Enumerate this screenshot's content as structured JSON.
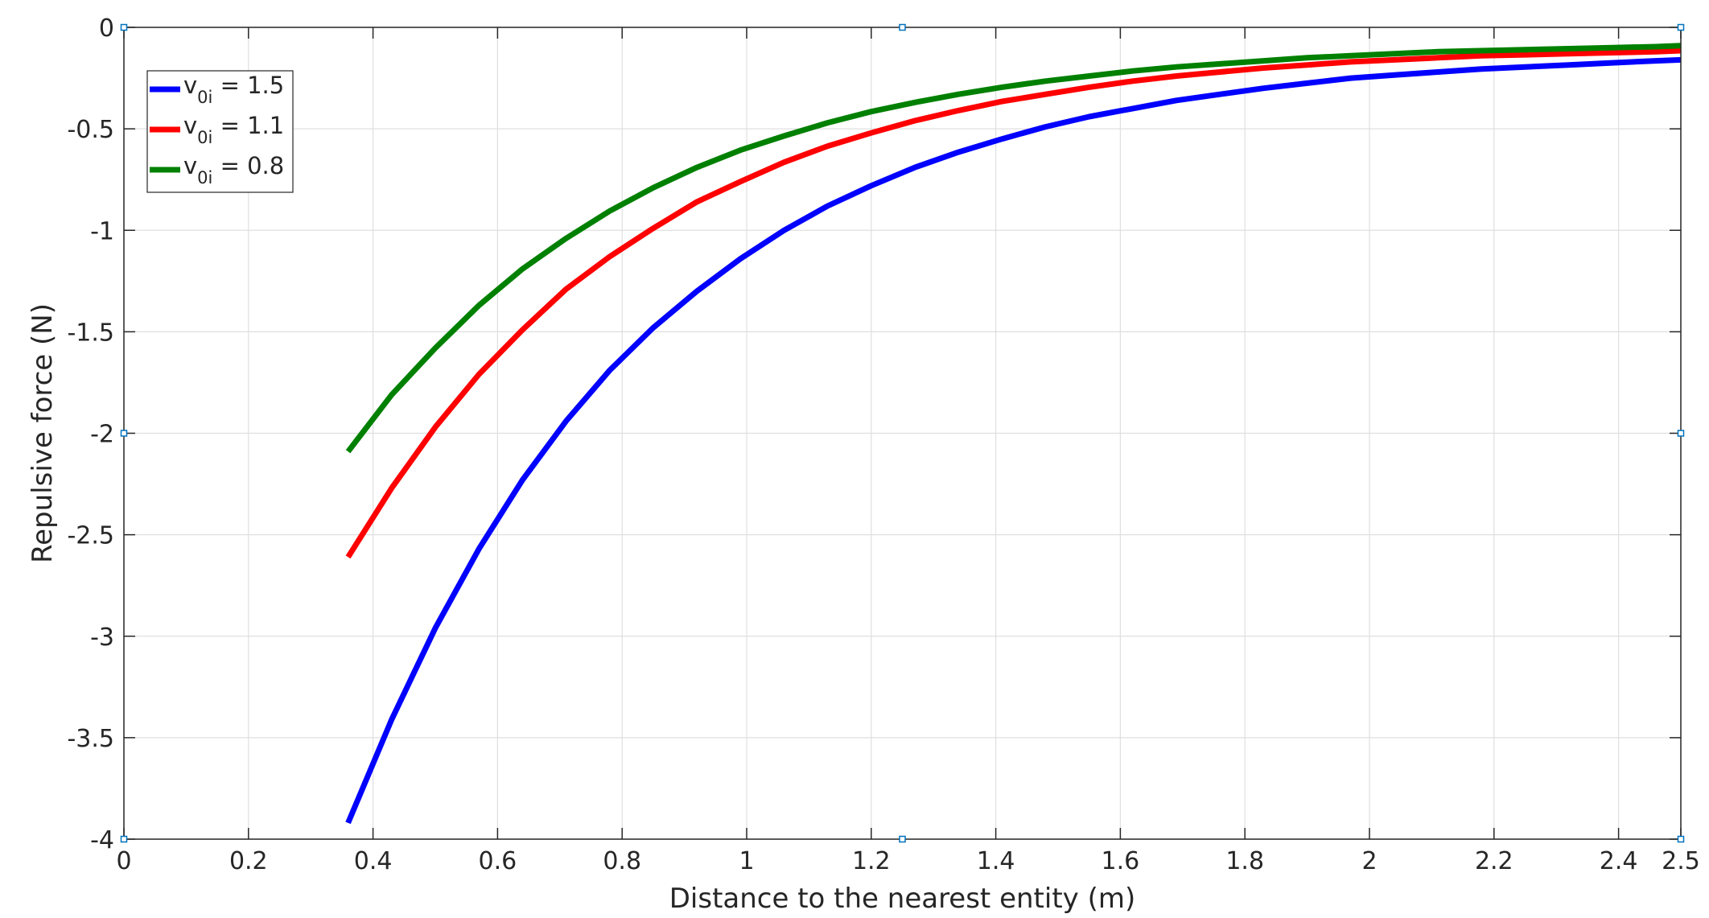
{
  "chart_data": {
    "type": "line",
    "title": "",
    "xlabel": "Distance to the nearest entity (m)",
    "ylabel": "Repulsive force (N)",
    "xlim": [
      0,
      2.5
    ],
    "ylim": [
      -4,
      0
    ],
    "xticks": [
      0,
      0.2,
      0.4,
      0.6,
      0.8,
      1,
      1.2,
      1.4,
      1.6,
      1.8,
      2,
      2.2,
      2.4,
      2.5
    ],
    "xtick_labels": [
      "0",
      "0.2",
      "0.4",
      "0.6",
      "0.8",
      "1",
      "1.2",
      "1.4",
      "1.6",
      "1.8",
      "2",
      "2.2",
      "2.4",
      "2.5"
    ],
    "yticks": [
      0,
      -0.5,
      -1,
      -1.5,
      -2,
      -2.5,
      -3,
      -3.5,
      -4
    ],
    "ytick_labels": [
      "0",
      "-0.5",
      "-1",
      "-1.5",
      "-2",
      "-2.5",
      "-3",
      "-3.5",
      "-4"
    ],
    "grid": true,
    "legend_location": "top-left",
    "x": [
      0.36,
      0.43,
      0.5,
      0.57,
      0.64,
      0.71,
      0.78,
      0.85,
      0.92,
      0.99,
      1.06,
      1.13,
      1.2,
      1.27,
      1.34,
      1.41,
      1.48,
      1.55,
      1.62,
      1.69,
      1.76,
      1.83,
      1.9,
      1.97,
      2.04,
      2.11,
      2.18,
      2.25,
      2.32,
      2.39,
      2.46,
      2.5
    ],
    "series": [
      {
        "name": "v0i = 1.5",
        "legend_main": "v",
        "legend_sub": "0i",
        "legend_rest": " = 1.5",
        "color": "#0000ff",
        "values": [
          -3.92,
          -3.41,
          -2.96,
          -2.57,
          -2.23,
          -1.94,
          -1.69,
          -1.48,
          -1.3,
          -1.14,
          -1.0,
          -0.88,
          -0.78,
          -0.69,
          -0.615,
          -0.55,
          -0.49,
          -0.44,
          -0.4,
          -0.36,
          -0.33,
          -0.3,
          -0.275,
          -0.25,
          -0.235,
          -0.22,
          -0.205,
          -0.195,
          -0.185,
          -0.175,
          -0.165,
          -0.16
        ]
      },
      {
        "name": "v0i = 1.1",
        "legend_main": "v",
        "legend_sub": "0i",
        "legend_rest": " = 1.1",
        "color": "#ff0000",
        "values": [
          -2.61,
          -2.27,
          -1.97,
          -1.71,
          -1.49,
          -1.29,
          -1.13,
          -0.99,
          -0.86,
          -0.76,
          -0.665,
          -0.585,
          -0.52,
          -0.46,
          -0.41,
          -0.365,
          -0.33,
          -0.295,
          -0.265,
          -0.24,
          -0.22,
          -0.2,
          -0.185,
          -0.17,
          -0.16,
          -0.15,
          -0.14,
          -0.135,
          -0.13,
          -0.125,
          -0.12,
          -0.115
        ]
      },
      {
        "name": "v0i = 0.8",
        "legend_main": "v",
        "legend_sub": "0i",
        "legend_rest": " = 0.8",
        "color": "#008000",
        "values": [
          -2.09,
          -1.81,
          -1.58,
          -1.37,
          -1.19,
          -1.04,
          -0.905,
          -0.79,
          -0.69,
          -0.605,
          -0.535,
          -0.47,
          -0.415,
          -0.37,
          -0.33,
          -0.295,
          -0.265,
          -0.24,
          -0.215,
          -0.195,
          -0.18,
          -0.165,
          -0.15,
          -0.14,
          -0.13,
          -0.12,
          -0.115,
          -0.11,
          -0.105,
          -0.1,
          -0.095,
          -0.09
        ]
      }
    ]
  }
}
